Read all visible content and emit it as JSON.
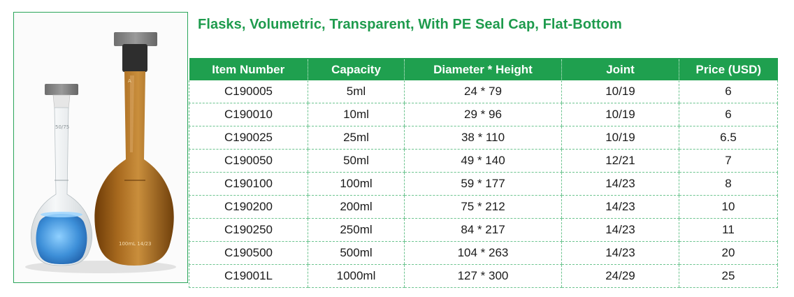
{
  "title": "Flasks, Volumetric, Transparent, With PE Seal Cap, Flat-Bottom",
  "table": {
    "headers": [
      "Item Number",
      "Capacity",
      "Diameter * Height",
      "Joint",
      "Price (USD)"
    ],
    "rows": [
      [
        "C190005",
        "5ml",
        "24 * 79",
        "10/19",
        "6"
      ],
      [
        "C190010",
        "10ml",
        "29 * 96",
        "10/19",
        "6"
      ],
      [
        "C190025",
        "25ml",
        "38 * 110",
        "10/19",
        "6.5"
      ],
      [
        "C190050",
        "50ml",
        "49 * 140",
        "12/21",
        "7"
      ],
      [
        "C190100",
        "100ml",
        "59 * 177",
        "14/23",
        "8"
      ],
      [
        "C190200",
        "200ml",
        "75 * 212",
        "14/23",
        "10"
      ],
      [
        "C190250",
        "250ml",
        "84 * 217",
        "14/23",
        "11"
      ],
      [
        "C190500",
        "500ml",
        "104 * 263",
        "14/23",
        "20"
      ],
      [
        "C19001L",
        "1000ml",
        "127 * 300",
        "24/29",
        "25"
      ]
    ]
  },
  "photo": {
    "clear_flask_marking": "50/75",
    "amber_flask_marking": "100mL 14/23",
    "colors": {
      "liquid": "#3d8fd8",
      "amber": "#9a5a14",
      "cap": "#7d7d7d",
      "accent": "#1fa04f"
    }
  }
}
